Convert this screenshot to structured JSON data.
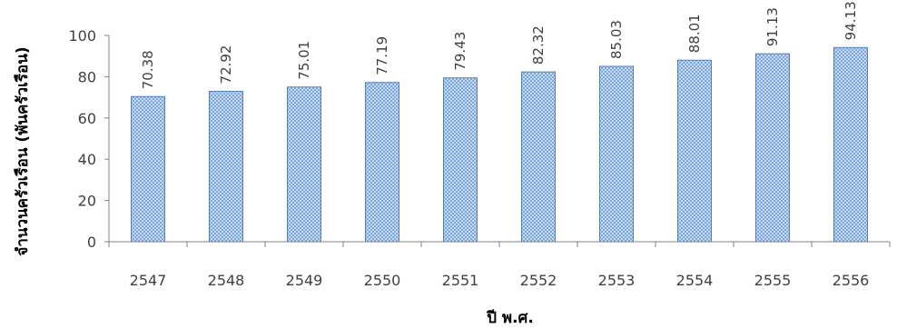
{
  "chart_data": {
    "type": "bar",
    "title": "",
    "xlabel": "ปี พ.ศ.",
    "ylabel": "จำนวนครัวเรือน (พันครัวเรือน)",
    "categories": [
      "2547",
      "2548",
      "2549",
      "2550",
      "2551",
      "2552",
      "2553",
      "2554",
      "2555",
      "2556"
    ],
    "values": [
      70.38,
      72.92,
      75.01,
      77.19,
      79.43,
      82.32,
      85.03,
      88.01,
      91.13,
      94.13
    ],
    "data_labels": [
      "70.38",
      "72.92",
      "75.01",
      "77.19",
      "79.43",
      "82.32",
      "85.03",
      "88.01",
      "91.13",
      "94.13"
    ],
    "ylim": [
      0,
      100
    ],
    "yticks": [
      0,
      20,
      40,
      60,
      80,
      100
    ],
    "ytick_labels": [
      "0",
      "20",
      "40",
      "60",
      "80",
      "100"
    ],
    "grid": false,
    "legend": "none",
    "colors": {
      "bar_fill": "#c5d9f1",
      "bar_pattern": "#7fa7dc",
      "bar_border": "#4f81bd",
      "axis": "#808080"
    }
  }
}
